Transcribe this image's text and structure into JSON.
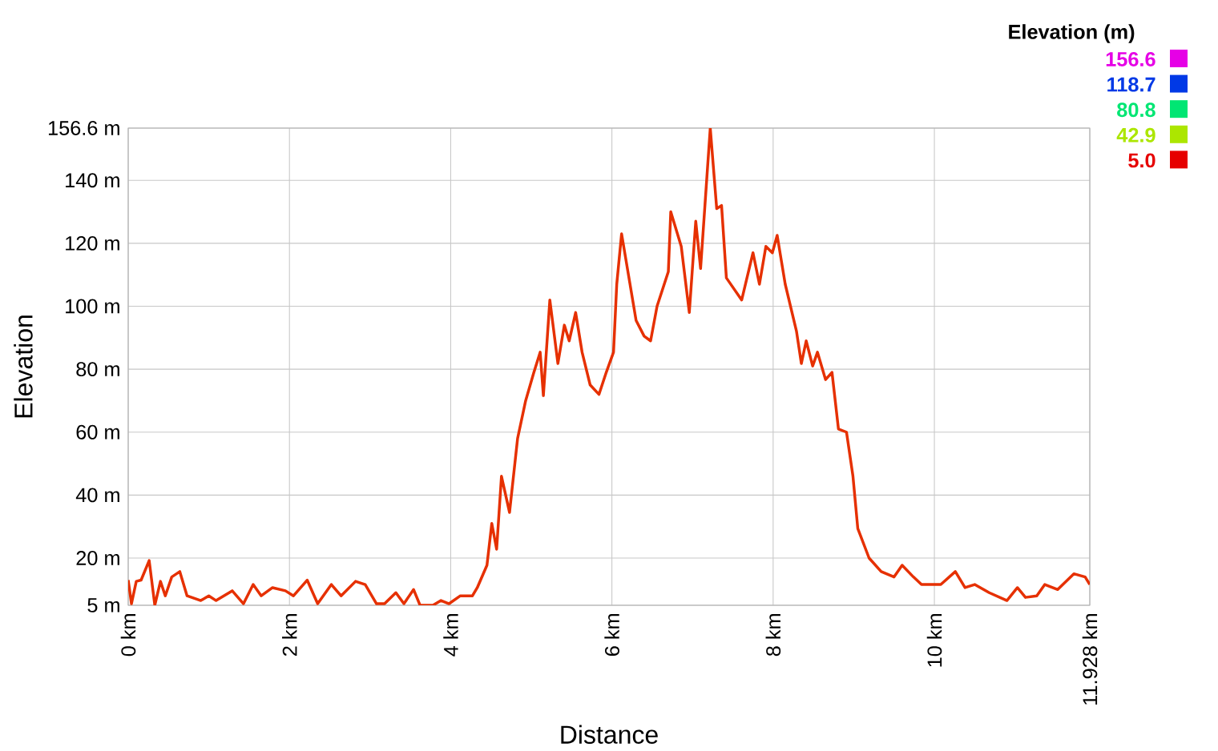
{
  "chart_data": {
    "type": "line",
    "xlabel": "Distance",
    "ylabel": "Elevation",
    "clabel": "Elevation (m)",
    "clim": [
      5,
      156.6
    ],
    "cticks": [
      {
        "value": 156.6,
        "label": "156.6"
      },
      {
        "value": 118.7,
        "label": "118.7"
      },
      {
        "value": 80.8,
        "label": "80.8"
      },
      {
        "value": 42.9,
        "label": "42.9"
      },
      {
        "value": 5,
        "label": "5.0"
      }
    ],
    "xlim": [
      0,
      11.928
    ],
    "xticks": [
      {
        "value": 0,
        "label": "0 km"
      },
      {
        "value": 2,
        "label": "2 km"
      },
      {
        "value": 4,
        "label": "4 km"
      },
      {
        "value": 6,
        "label": "6 km"
      },
      {
        "value": 8,
        "label": "8 km"
      },
      {
        "value": 10,
        "label": "10 km"
      },
      {
        "value": 11.928,
        "label": "11.928 km"
      }
    ],
    "ylim": [
      5,
      156.6
    ],
    "yticks": [
      {
        "value": 5,
        "label": "5 m"
      },
      {
        "value": 20,
        "label": "20 m"
      },
      {
        "value": 40,
        "label": "40 m"
      },
      {
        "value": 60,
        "label": "60 m"
      },
      {
        "value": 80,
        "label": "80 m"
      },
      {
        "value": 100,
        "label": "100 m"
      },
      {
        "value": 120,
        "label": "120 m"
      },
      {
        "value": 140,
        "label": "140 m"
      },
      {
        "value": 156.6,
        "label": "156.6 m"
      }
    ],
    "color": "#e63000",
    "grid": true,
    "marker": "none",
    "line_style": "solid",
    "x": [
      0,
      0.04,
      0.1,
      0.16,
      0.26,
      0.33,
      0.4,
      0.46,
      0.54,
      0.64,
      0.73,
      0.9,
      1.0,
      1.09,
      1.29,
      1.43,
      1.55,
      1.65,
      1.79,
      1.95,
      2.05,
      2.22,
      2.35,
      2.52,
      2.64,
      2.82,
      2.94,
      3.08,
      3.18,
      3.32,
      3.42,
      3.54,
      3.62,
      3.78,
      3.88,
      3.98,
      4.12,
      4.27,
      4.33,
      4.45,
      4.51,
      4.57,
      4.63,
      4.73,
      4.83,
      4.93,
      5.03,
      5.11,
      5.15,
      5.23,
      5.33,
      5.41,
      5.47,
      5.55,
      5.63,
      5.73,
      5.84,
      5.93,
      6.02,
      6.06,
      6.12,
      6.3,
      6.4,
      6.48,
      6.56,
      6.7,
      6.73,
      6.86,
      6.96,
      7.04,
      7.1,
      7.22,
      7.3,
      7.36,
      7.42,
      7.61,
      7.75,
      7.83,
      7.91,
      7.99,
      8.05,
      8.15,
      8.29,
      8.35,
      8.41,
      8.49,
      8.55,
      8.65,
      8.73,
      8.81,
      8.91,
      8.99,
      9.05,
      9.19,
      9.34,
      9.5,
      9.6,
      9.74,
      9.84,
      10.08,
      10.26,
      10.38,
      10.5,
      10.68,
      10.9,
      11.03,
      11.13,
      11.27,
      11.37,
      11.53,
      11.73,
      11.87,
      11.928
    ],
    "values": [
      13,
      5.5,
      12.6,
      13,
      19.2,
      5,
      12.6,
      8,
      14,
      15.7,
      8,
      6.5,
      8,
      6.5,
      9.6,
      5.5,
      11.6,
      8,
      10.6,
      9.6,
      8,
      13,
      5.5,
      11.6,
      8,
      12.6,
      11.6,
      5.5,
      5.5,
      9,
      5.5,
      10,
      5,
      5,
      6.5,
      5.5,
      8,
      8,
      10.6,
      17.7,
      31,
      22.8,
      46,
      34.5,
      58,
      70,
      78.8,
      85.4,
      71.6,
      102,
      81.8,
      94,
      89,
      98,
      85.4,
      75,
      72,
      79,
      85.4,
      107,
      123,
      95.5,
      90.5,
      89,
      100,
      111,
      130,
      119,
      98,
      127,
      112,
      156.6,
      131,
      132,
      109,
      102,
      117,
      107,
      119,
      117,
      122.5,
      107,
      92,
      81.8,
      89,
      81,
      85.4,
      76.7,
      79,
      61,
      60,
      46,
      29.4,
      20,
      15.7,
      14,
      17.7,
      14,
      11.6,
      11.6,
      15.7,
      10.6,
      11.6,
      9,
      6.5,
      10.6,
      7.5,
      8,
      11.6,
      10,
      15,
      14,
      11.6
    ]
  }
}
